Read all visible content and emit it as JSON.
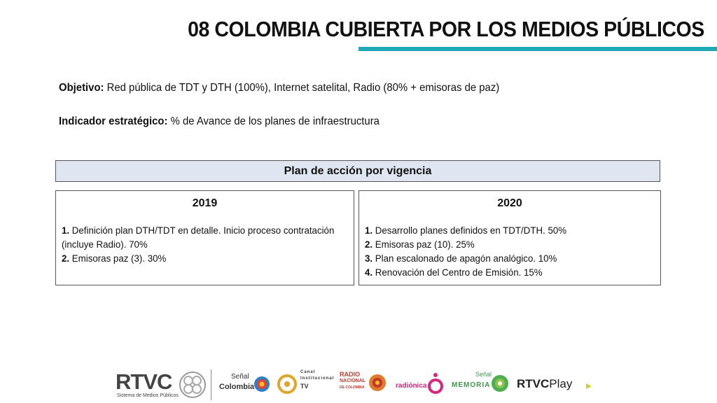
{
  "header": {
    "title": "08 COLOMBIA CUBIERTA POR LOS MEDIOS PÚBLICOS",
    "accent_color": "#1fa9b5"
  },
  "objetivo": {
    "label": "Objetivo:",
    "text": " Red pública de TDT y DTH (100%), Internet satelital, Radio (80% + emisoras de paz)"
  },
  "indicador": {
    "label": "Indicador estratégico:",
    "text": " % de Avance de los planes de infraestructura"
  },
  "plan": {
    "title": "Plan de acción por vigencia",
    "header_bg": "#dfe5f1",
    "years": [
      {
        "year": "2019",
        "items": [
          {
            "num": "1.",
            "text": " Definición plan DTH/TDT en detalle. Inicio proceso contratación (incluye Radio). 70%"
          },
          {
            "num": "2.",
            "text": " Emisoras paz (3). 30%"
          }
        ]
      },
      {
        "year": "2020",
        "items": [
          {
            "num": "1.",
            "text": " Desarrollo planes definidos en TDT/DTH. 50%"
          },
          {
            "num": "2.",
            "text": " Emisoras paz (10). 25%"
          },
          {
            "num": "3.",
            "text": " Plan escalonado de apagón analógico. 10%"
          },
          {
            "num": "4.",
            "text": " Renovación del Centro de Emisión. 15%"
          }
        ]
      }
    ]
  },
  "footer": {
    "rtvc": "RTVC",
    "rtvc_sub": "Sistema de Medios Públicos",
    "senal_colombia_top": "Señal",
    "senal_colombia_bottom": "Colombia",
    "canal_institucional_1": "Canal",
    "canal_institucional_2": "Institucional",
    "canal_institucional_3": "TV",
    "radio_nacional_1": "RADIO",
    "radio_nacional_2": "NACIONAL",
    "radio_nacional_3": "DE COLOMBIA",
    "radionica": "radiónica",
    "senal_memoria_top": "Señal",
    "senal_memoria_bottom": "MEMORIA",
    "rtvc_play_1": "RTVC",
    "rtvc_play_2": "Play"
  }
}
